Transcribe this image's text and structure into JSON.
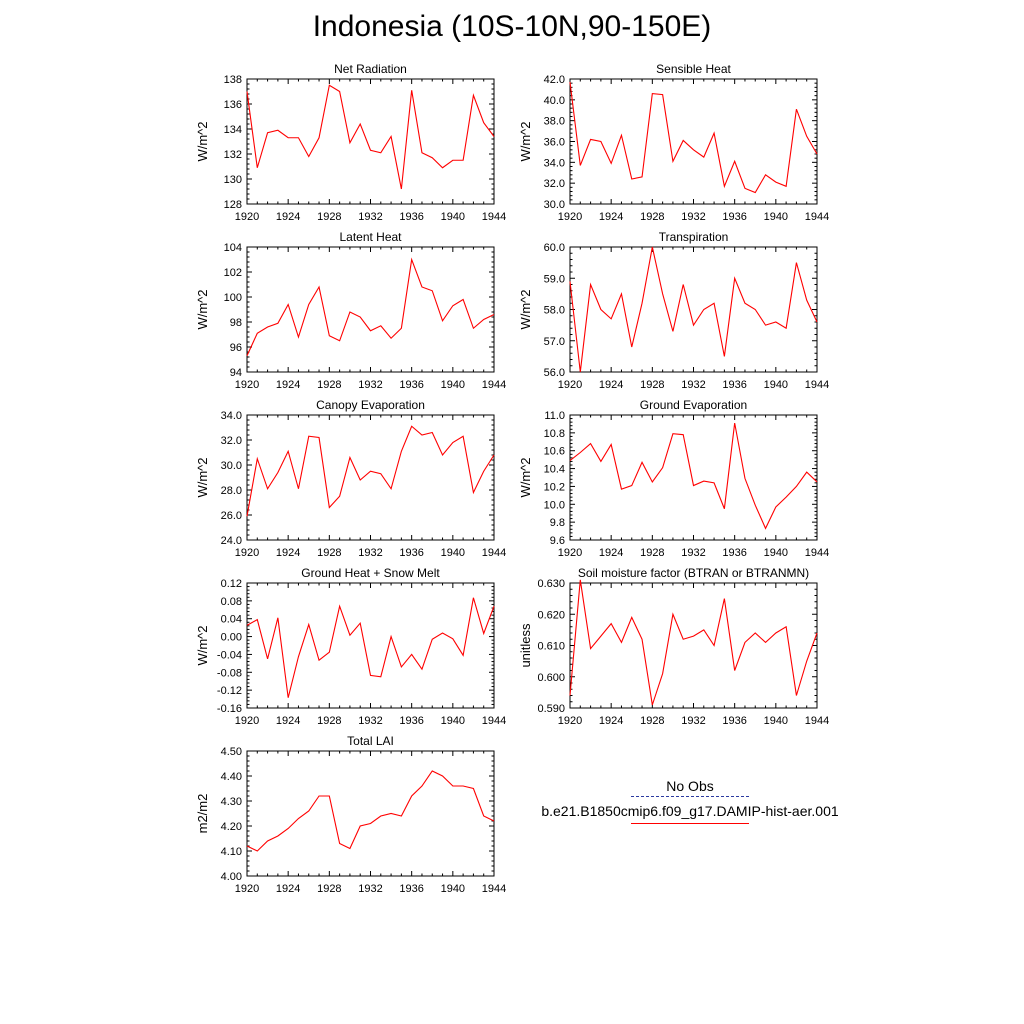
{
  "main_title": "Indonesia (10S-10N,90-150E)",
  "legend": {
    "obs_label": "No Obs",
    "model_label": "b.e21.B1850cmip6.f09_g17.DAMIP-hist-aer.001",
    "obs_color": "#2b3aa0",
    "model_color": "#ff0000"
  },
  "x_axis": {
    "tick_values": [
      1920,
      1924,
      1928,
      1932,
      1936,
      1940,
      1944
    ],
    "tick_labels": [
      "1920",
      "1924",
      "1928",
      "1932",
      "1936",
      "1940",
      "1944"
    ],
    "range": [
      1920,
      1944
    ]
  },
  "chart_data": [
    {
      "type": "line",
      "title": "Net Radiation",
      "ylabel": "W/m^2",
      "ylim": [
        128,
        138
      ],
      "y_ticks": [
        128,
        130,
        132,
        134,
        136,
        138
      ],
      "y_tick_labels": [
        "128",
        "130",
        "132",
        "134",
        "136",
        "138"
      ],
      "x": [
        1920,
        1921,
        1922,
        1923,
        1924,
        1925,
        1926,
        1927,
        1928,
        1929,
        1930,
        1931,
        1932,
        1933,
        1934,
        1935,
        1936,
        1937,
        1938,
        1939,
        1940,
        1941,
        1942,
        1943,
        1944
      ],
      "series": [
        {
          "values": [
            137.0,
            130.9,
            133.7,
            133.9,
            133.3,
            133.3,
            131.8,
            133.3,
            137.5,
            137.0,
            132.9,
            134.4,
            132.3,
            132.1,
            133.4,
            129.2,
            137.1,
            132.1,
            131.7,
            130.9,
            131.5,
            131.5,
            136.7,
            134.5,
            133.4
          ]
        }
      ]
    },
    {
      "type": "line",
      "title": "Sensible Heat",
      "ylabel": "W/m^2",
      "ylim": [
        30.0,
        42.0
      ],
      "y_ticks": [
        30,
        32,
        34,
        36,
        38,
        40,
        42
      ],
      "y_tick_labels": [
        "30.0",
        "32.0",
        "34.0",
        "36.0",
        "38.0",
        "40.0",
        "42.0"
      ],
      "x": [
        1920,
        1921,
        1922,
        1923,
        1924,
        1925,
        1926,
        1927,
        1928,
        1929,
        1930,
        1931,
        1932,
        1933,
        1934,
        1935,
        1936,
        1937,
        1938,
        1939,
        1940,
        1941,
        1942,
        1943,
        1944
      ],
      "series": [
        {
          "values": [
            41.7,
            33.7,
            36.2,
            36.0,
            33.9,
            36.6,
            32.4,
            32.6,
            40.6,
            40.5,
            34.1,
            36.1,
            35.2,
            34.5,
            36.8,
            31.7,
            34.1,
            31.5,
            31.1,
            32.8,
            32.1,
            31.7,
            39.1,
            36.5,
            34.8
          ]
        }
      ]
    },
    {
      "type": "line",
      "title": "Latent Heat",
      "ylabel": "W/m^2",
      "ylim": [
        94,
        104
      ],
      "y_ticks": [
        94,
        96,
        98,
        100,
        102,
        104
      ],
      "y_tick_labels": [
        "94",
        "96",
        "98",
        "100",
        "102",
        "104"
      ],
      "x": [
        1920,
        1921,
        1922,
        1923,
        1924,
        1925,
        1926,
        1927,
        1928,
        1929,
        1930,
        1931,
        1932,
        1933,
        1934,
        1935,
        1936,
        1937,
        1938,
        1939,
        1940,
        1941,
        1942,
        1943,
        1944
      ],
      "series": [
        {
          "values": [
            95.3,
            97.1,
            97.6,
            97.9,
            99.4,
            96.8,
            99.4,
            100.8,
            96.9,
            96.5,
            98.8,
            98.4,
            97.3,
            97.7,
            96.7,
            97.5,
            103.0,
            100.8,
            100.5,
            98.1,
            99.3,
            99.8,
            97.5,
            98.2,
            98.6
          ]
        }
      ]
    },
    {
      "type": "line",
      "title": "Transpiration",
      "ylabel": "W/m^2",
      "ylim": [
        56.0,
        60.0
      ],
      "y_ticks": [
        56,
        57,
        58,
        59,
        60
      ],
      "y_tick_labels": [
        "56.0",
        "57.0",
        "58.0",
        "59.0",
        "60.0"
      ],
      "x": [
        1920,
        1921,
        1922,
        1923,
        1924,
        1925,
        1926,
        1927,
        1928,
        1929,
        1930,
        1931,
        1932,
        1933,
        1934,
        1935,
        1936,
        1937,
        1938,
        1939,
        1940,
        1941,
        1942,
        1943,
        1944
      ],
      "series": [
        {
          "values": [
            58.9,
            56.0,
            58.8,
            58.0,
            57.7,
            58.5,
            56.8,
            58.2,
            60.0,
            58.5,
            57.3,
            58.8,
            57.5,
            58.0,
            58.2,
            56.5,
            59.0,
            58.2,
            58.0,
            57.5,
            57.6,
            57.4,
            59.5,
            58.3,
            57.6
          ]
        }
      ]
    },
    {
      "type": "line",
      "title": "Canopy Evaporation",
      "ylabel": "W/m^2",
      "ylim": [
        24.0,
        34.0
      ],
      "y_ticks": [
        24,
        26,
        28,
        30,
        32,
        34
      ],
      "y_tick_labels": [
        "24.0",
        "26.0",
        "28.0",
        "30.0",
        "32.0",
        "34.0"
      ],
      "x": [
        1920,
        1921,
        1922,
        1923,
        1924,
        1925,
        1926,
        1927,
        1928,
        1929,
        1930,
        1931,
        1932,
        1933,
        1934,
        1935,
        1936,
        1937,
        1938,
        1939,
        1940,
        1941,
        1942,
        1943,
        1944
      ],
      "series": [
        {
          "values": [
            25.9,
            30.5,
            28.1,
            29.4,
            31.1,
            28.1,
            32.3,
            32.2,
            26.6,
            27.5,
            30.6,
            28.8,
            29.5,
            29.3,
            28.1,
            31.1,
            33.1,
            32.4,
            32.6,
            30.8,
            31.8,
            32.3,
            27.8,
            29.5,
            30.8
          ]
        }
      ]
    },
    {
      "type": "line",
      "title": "Ground Evaporation",
      "ylabel": "W/m^2",
      "ylim": [
        9.6,
        11.0
      ],
      "y_ticks": [
        9.6,
        9.8,
        10.0,
        10.2,
        10.4,
        10.6,
        10.8,
        11.0
      ],
      "y_tick_labels": [
        "9.6",
        "9.8",
        "10.0",
        "10.2",
        "10.4",
        "10.6",
        "10.8",
        "11.0"
      ],
      "x": [
        1920,
        1921,
        1922,
        1923,
        1924,
        1925,
        1926,
        1927,
        1928,
        1929,
        1930,
        1931,
        1932,
        1933,
        1934,
        1935,
        1936,
        1937,
        1938,
        1939,
        1940,
        1941,
        1942,
        1943,
        1944
      ],
      "series": [
        {
          "values": [
            10.49,
            10.58,
            10.68,
            10.48,
            10.67,
            10.17,
            10.21,
            10.47,
            10.25,
            10.41,
            10.79,
            10.78,
            10.21,
            10.26,
            10.24,
            9.95,
            10.91,
            10.29,
            9.99,
            9.73,
            9.97,
            10.08,
            10.2,
            10.36,
            10.25
          ]
        }
      ]
    },
    {
      "type": "line",
      "title": "Ground Heat + Snow Melt",
      "ylabel": "W/m^2",
      "ylim": [
        -0.16,
        0.12
      ],
      "y_ticks": [
        -0.16,
        -0.12,
        -0.08,
        -0.04,
        0.0,
        0.04,
        0.08,
        0.12
      ],
      "y_tick_labels": [
        "-0.16",
        "-0.12",
        "-0.08",
        "-0.04",
        "0.00",
        "0.04",
        "0.08",
        "0.12"
      ],
      "x": [
        1920,
        1921,
        1922,
        1923,
        1924,
        1925,
        1926,
        1927,
        1928,
        1929,
        1930,
        1931,
        1932,
        1933,
        1934,
        1935,
        1936,
        1937,
        1938,
        1939,
        1940,
        1941,
        1942,
        1943,
        1944
      ],
      "series": [
        {
          "values": [
            0.025,
            0.038,
            -0.05,
            0.042,
            -0.137,
            -0.045,
            0.027,
            -0.053,
            -0.035,
            0.068,
            0.003,
            0.03,
            -0.087,
            -0.09,
            0.0,
            -0.068,
            -0.04,
            -0.073,
            -0.006,
            0.008,
            -0.005,
            -0.042,
            0.087,
            0.007,
            0.068
          ]
        }
      ]
    },
    {
      "type": "line",
      "title": "Soil moisture factor (BTRAN or BTRANMN)",
      "ylabel": "unitless",
      "ylim": [
        0.59,
        0.63
      ],
      "y_ticks": [
        0.59,
        0.6,
        0.61,
        0.62,
        0.63
      ],
      "y_tick_labels": [
        "0.590",
        "0.600",
        "0.610",
        "0.620",
        "0.630"
      ],
      "x": [
        1920,
        1921,
        1922,
        1923,
        1924,
        1925,
        1926,
        1927,
        1928,
        1929,
        1930,
        1931,
        1932,
        1933,
        1934,
        1935,
        1936,
        1937,
        1938,
        1939,
        1940,
        1941,
        1942,
        1943,
        1944
      ],
      "series": [
        {
          "values": [
            0.594,
            0.631,
            0.609,
            0.613,
            0.617,
            0.611,
            0.619,
            0.612,
            0.591,
            0.601,
            0.62,
            0.612,
            0.613,
            0.615,
            0.61,
            0.625,
            0.602,
            0.611,
            0.614,
            0.611,
            0.614,
            0.616,
            0.594,
            0.605,
            0.614
          ]
        }
      ]
    },
    {
      "type": "line",
      "title": "Total LAI",
      "ylabel": "m2/m2",
      "ylim": [
        4.0,
        4.5
      ],
      "y_ticks": [
        4.0,
        4.1,
        4.2,
        4.3,
        4.4,
        4.5
      ],
      "y_tick_labels": [
        "4.00",
        "4.10",
        "4.20",
        "4.30",
        "4.40",
        "4.50"
      ],
      "x": [
        1920,
        1921,
        1922,
        1923,
        1924,
        1925,
        1926,
        1927,
        1928,
        1929,
        1930,
        1931,
        1932,
        1933,
        1934,
        1935,
        1936,
        1937,
        1938,
        1939,
        1940,
        1941,
        1942,
        1943,
        1944
      ],
      "series": [
        {
          "values": [
            4.12,
            4.1,
            4.14,
            4.16,
            4.19,
            4.23,
            4.26,
            4.32,
            4.32,
            4.13,
            4.11,
            4.2,
            4.21,
            4.24,
            4.25,
            4.24,
            4.32,
            4.36,
            4.42,
            4.4,
            4.36,
            4.36,
            4.35,
            4.24,
            4.22
          ]
        }
      ]
    }
  ]
}
